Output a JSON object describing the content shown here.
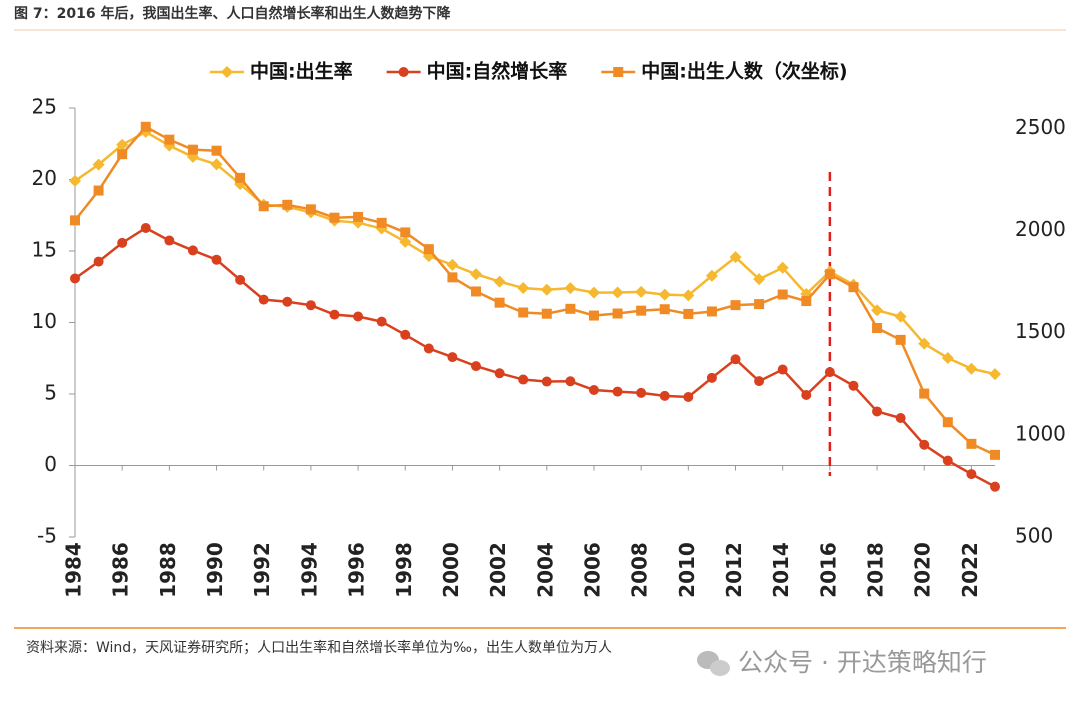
{
  "figure_title": "图 7：2016 年后，我国出生率、人口自然增长率和出生人数趋势下降",
  "source": "资料来源：Wind，天风证券研究所；人口出生率和自然增长率单位为‰，出生人数单位为万人",
  "watermark": "公众号 · 开达策略知行",
  "chart_data": {
    "type": "line",
    "x": [
      1984,
      1985,
      1986,
      1987,
      1988,
      1989,
      1990,
      1991,
      1992,
      1993,
      1994,
      1995,
      1996,
      1997,
      1998,
      1999,
      2000,
      2001,
      2002,
      2003,
      2004,
      2005,
      2006,
      2007,
      2008,
      2009,
      2010,
      2011,
      2012,
      2013,
      2014,
      2015,
      2016,
      2017,
      2018,
      2019,
      2020,
      2021,
      2022,
      2023
    ],
    "xlim": [
      1984,
      2023
    ],
    "xticks": [
      1984,
      1986,
      1988,
      1990,
      1992,
      1994,
      1996,
      1998,
      2000,
      2002,
      2004,
      2006,
      2008,
      2010,
      2012,
      2014,
      2016,
      2018,
      2020,
      2022
    ],
    "ylim": [
      -5,
      25
    ],
    "yticks": [
      -5,
      0,
      5,
      10,
      15,
      20,
      25
    ],
    "y2lim": [
      500,
      2600
    ],
    "y2ticks": [
      500,
      1000,
      1500,
      2000,
      2500
    ],
    "marker_line": {
      "x": 2016,
      "color": "#e0201a"
    },
    "series": [
      {
        "name": "中国:出生率",
        "color": "#f5b82e",
        "marker": "diamond",
        "values": [
          19.9,
          21.04,
          22.43,
          23.33,
          22.37,
          21.58,
          21.06,
          19.68,
          18.24,
          18.09,
          17.7,
          17.12,
          16.98,
          16.57,
          15.64,
          14.64,
          14.03,
          13.38,
          12.86,
          12.41,
          12.29,
          12.4,
          12.09,
          12.1,
          12.14,
          11.95,
          11.9,
          13.27,
          14.57,
          13.03,
          13.83,
          11.99,
          13.57,
          12.64,
          10.86,
          10.41,
          8.52,
          7.52,
          6.77,
          6.39
        ]
      },
      {
        "name": "中国:自然增长率",
        "color": "#d9401e",
        "marker": "circle",
        "values": [
          13.08,
          14.26,
          15.57,
          16.61,
          15.73,
          15.04,
          14.39,
          12.98,
          11.6,
          11.45,
          11.21,
          10.55,
          10.42,
          10.06,
          9.14,
          8.18,
          7.58,
          6.95,
          6.45,
          6.01,
          5.87,
          5.89,
          5.28,
          5.17,
          5.08,
          4.87,
          4.79,
          6.13,
          7.43,
          5.9,
          6.71,
          4.93,
          6.53,
          5.58,
          3.78,
          3.32,
          1.45,
          0.34,
          -0.6,
          -1.48
        ]
      },
      {
        "name": "中国:出生人数（次坐标)",
        "color": "#f08a24",
        "marker": "square",
        "axis": "y2",
        "values": [
          2050,
          2196,
          2374,
          2508,
          2445,
          2396,
          2391,
          2258,
          2119,
          2126,
          2104,
          2063,
          2067,
          2038,
          1991,
          1909,
          1771,
          1702,
          1647,
          1599,
          1593,
          1617,
          1584,
          1594,
          1608,
          1615,
          1592,
          1604,
          1635,
          1640,
          1687,
          1655,
          1786,
          1723,
          1523,
          1465,
          1202,
          1062,
          956,
          902
        ]
      }
    ]
  }
}
